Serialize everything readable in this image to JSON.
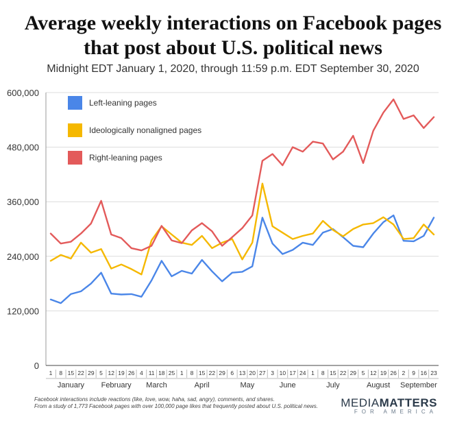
{
  "header": {
    "title_line1": "Average weekly interactions on Facebook pages",
    "title_line2": "that post about U.S. political news",
    "subtitle": "Midnight EDT January 1, 2020, through 11:59 p.m. EDT September 30, 2020"
  },
  "footer": {
    "note_line1": "Facebook interactions include reactions (like, love, wow, haha, sad, angry), comments, and shares.",
    "note_line2": "From a study of 1,773 Facebook pages with over 100,000 page likes that frequently posted about U.S. political news.",
    "brand_part1": "MEDIA",
    "brand_part2": "MATTERS",
    "brand_sub": "FOR AMERICA"
  },
  "chart_data": {
    "type": "line",
    "title": "Average weekly interactions on Facebook pages that post about U.S. political news",
    "subtitle": "Midnight EDT January 1, 2020, through 11:59 p.m. EDT September 30, 2020",
    "ylim": [
      0,
      600000
    ],
    "yticks": [
      0,
      120000,
      240000,
      360000,
      480000,
      600000
    ],
    "ytick_labels": [
      "0",
      "120,000",
      "240,000",
      "360,000",
      "480,000",
      "600,000"
    ],
    "grid": true,
    "legend_position": "top-left",
    "categories": [
      "1",
      "8",
      "15",
      "22",
      "29",
      "5",
      "12",
      "19",
      "26",
      "4",
      "11",
      "18",
      "25",
      "1",
      "8",
      "15",
      "22",
      "29",
      "6",
      "13",
      "20",
      "27",
      "3",
      "10",
      "17",
      "24",
      "1",
      "8",
      "15",
      "22",
      "29",
      "5",
      "12",
      "19",
      "26",
      "2",
      "9",
      "16",
      "23"
    ],
    "month_labels": [
      {
        "label": "January",
        "start": 0,
        "end": 4
      },
      {
        "label": "February",
        "start": 5,
        "end": 8
      },
      {
        "label": "March",
        "start": 9,
        "end": 12
      },
      {
        "label": "April",
        "start": 13,
        "end": 17
      },
      {
        "label": "May",
        "start": 18,
        "end": 21
      },
      {
        "label": "June",
        "start": 22,
        "end": 25
      },
      {
        "label": "July",
        "start": 26,
        "end": 30
      },
      {
        "label": "August",
        "start": 31,
        "end": 34
      },
      {
        "label": "September",
        "start": 35,
        "end": 38
      }
    ],
    "series": [
      {
        "name": "Left-leaning pages",
        "color": "#4a86e8",
        "values": [
          145000,
          137000,
          157000,
          163000,
          180000,
          204000,
          158000,
          156000,
          157000,
          151000,
          187000,
          230000,
          196000,
          208000,
          202000,
          232000,
          207000,
          185000,
          204000,
          206000,
          218000,
          325000,
          268000,
          245000,
          254000,
          270000,
          265000,
          292000,
          300000,
          282000,
          263000,
          260000,
          290000,
          315000,
          330000,
          274000,
          273000,
          285000,
          325000
        ]
      },
      {
        "name": "Ideologically nonaligned pages",
        "color": "#f5b800",
        "values": [
          230000,
          243000,
          235000,
          270000,
          248000,
          256000,
          213000,
          222000,
          212000,
          200000,
          275000,
          306000,
          288000,
          270000,
          265000,
          285000,
          258000,
          270000,
          278000,
          233000,
          270000,
          400000,
          306000,
          292000,
          278000,
          285000,
          290000,
          318000,
          298000,
          284000,
          300000,
          310000,
          313000,
          326000,
          310000,
          278000,
          280000,
          310000,
          288000
        ]
      },
      {
        "name": "Right-leaning pages",
        "color": "#e35a5a",
        "values": [
          290000,
          268000,
          272000,
          290000,
          312000,
          362000,
          288000,
          280000,
          258000,
          253000,
          263000,
          307000,
          275000,
          269000,
          297000,
          313000,
          295000,
          263000,
          282000,
          302000,
          330000,
          450000,
          465000,
          440000,
          480000,
          470000,
          492000,
          488000,
          453000,
          470000,
          505000,
          445000,
          516000,
          556000,
          585000,
          542000,
          550000,
          522000,
          546000
        ]
      }
    ]
  }
}
